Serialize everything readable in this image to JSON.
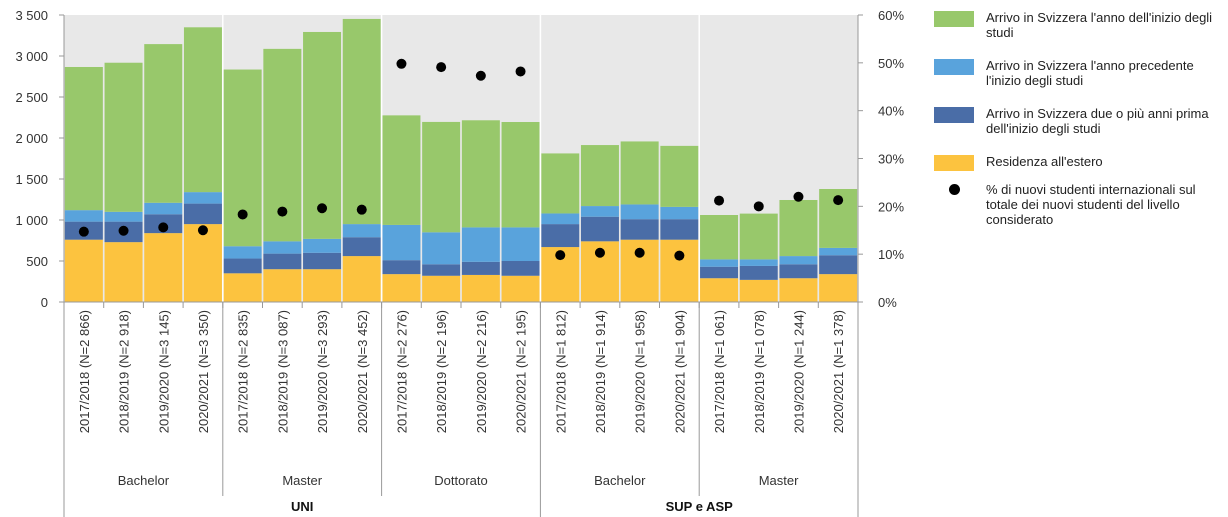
{
  "chart_data": {
    "type": "bar",
    "stacked": true,
    "left_axis": {
      "ylim": [
        0,
        3500
      ],
      "ticks": [
        "0",
        "500",
        "1 000",
        "1 500",
        "2 000",
        "2 500",
        "3 000",
        "3 500"
      ]
    },
    "right_axis": {
      "ylim": [
        0,
        60
      ],
      "ticks": [
        "0%",
        "10%",
        "20%",
        "30%",
        "40%",
        "50%",
        "60%"
      ]
    },
    "grid": false,
    "legend_position": "right",
    "categories": [
      "2017/2018 (N=2 866)",
      "2018/2019 (N=2 918)",
      "2019/2020 (N=3 145)",
      "2020/2021 (N=3 350)",
      "2017/2018 (N=2 835)",
      "2018/2019 (N=3 087)",
      "2019/2020 (N=3 293)",
      "2020/2021 (N=3 452)",
      "2017/2018 (N=2 276)",
      "2018/2019 (N=2 196)",
      "2019/2020 (N=2 216)",
      "2020/2021 (N=2 195)",
      "2017/2018 (N=1 812)",
      "2018/2019 (N=1 914)",
      "2019/2020 (N=1 958)",
      "2020/2021 (N=1 904)",
      "2017/2018 (N=1 061)",
      "2018/2019 (N=1 078)",
      "2019/2020 (N=1 244)",
      "2020/2021 (N=1 378)"
    ],
    "groups": [
      {
        "label": "Bachelor",
        "start": 0,
        "count": 4
      },
      {
        "label": "Master",
        "start": 4,
        "count": 4
      },
      {
        "label": "Dottorato",
        "start": 8,
        "count": 4
      },
      {
        "label": "Bachelor",
        "start": 12,
        "count": 4
      },
      {
        "label": "Master",
        "start": 16,
        "count": 4
      }
    ],
    "supergroups": [
      {
        "label": "UNI",
        "start": 0,
        "count": 12
      },
      {
        "label": "SUP e ASP",
        "start": 12,
        "count": 8
      }
    ],
    "series": [
      {
        "name": "Residenza all'estero",
        "color": "#fcc33f",
        "values": [
          760,
          730,
          840,
          950,
          350,
          400,
          400,
          560,
          340,
          320,
          330,
          320,
          670,
          740,
          760,
          760,
          290,
          270,
          290,
          340
        ]
      },
      {
        "name": "Arrivo in Svizzera due o più anni prima dell'inizio degli studi",
        "color": "#4a6da7",
        "values": [
          220,
          250,
          230,
          250,
          180,
          190,
          200,
          230,
          170,
          140,
          160,
          180,
          280,
          300,
          250,
          250,
          140,
          170,
          170,
          230
        ]
      },
      {
        "name": "Arrivo in Svizzera l'anno precedente l'inizio degli studi",
        "color": "#59a3dc",
        "values": [
          140,
          120,
          140,
          140,
          150,
          150,
          170,
          160,
          430,
          390,
          420,
          410,
          130,
          130,
          180,
          150,
          90,
          80,
          100,
          90
        ]
      },
      {
        "name": "Arrivo in Svizzera l'anno dell'inizio degli studi",
        "color": "#98c86b",
        "values": [
          1746,
          1818,
          1935,
          2010,
          2155,
          2347,
          2523,
          2502,
          1336,
          1346,
          1306,
          1285,
          732,
          744,
          768,
          744,
          541,
          558,
          684,
          718
        ]
      }
    ],
    "points": {
      "name": "% di nuovi studenti internazionali sul totale dei nuovi studenti del livello considerato",
      "color": "#000000",
      "axis": "right",
      "values": [
        14.7,
        14.9,
        15.6,
        15.0,
        18.3,
        18.9,
        19.6,
        19.3,
        49.8,
        49.1,
        47.3,
        48.2,
        9.8,
        10.3,
        10.3,
        9.7,
        21.2,
        20.0,
        22.0,
        21.3
      ]
    }
  },
  "legend": [
    {
      "label": "Arrivo in Svizzera l'anno dell'inizio degli studi",
      "color": "#98c86b",
      "kind": "swatch"
    },
    {
      "label": "Arrivo in Svizzera l'anno precedente l'inizio degli studi",
      "color": "#59a3dc",
      "kind": "swatch"
    },
    {
      "label": "Arrivo in Svizzera due o più anni prima dell'inizio degli studi",
      "color": "#4a6da7",
      "kind": "swatch"
    },
    {
      "label": "Residenza all'estero",
      "color": "#fcc33f",
      "kind": "swatch"
    },
    {
      "label": "% di nuovi studenti internazionali sul totale dei nuovi studenti del livello considerato",
      "color": "#000000",
      "kind": "dot"
    }
  ]
}
